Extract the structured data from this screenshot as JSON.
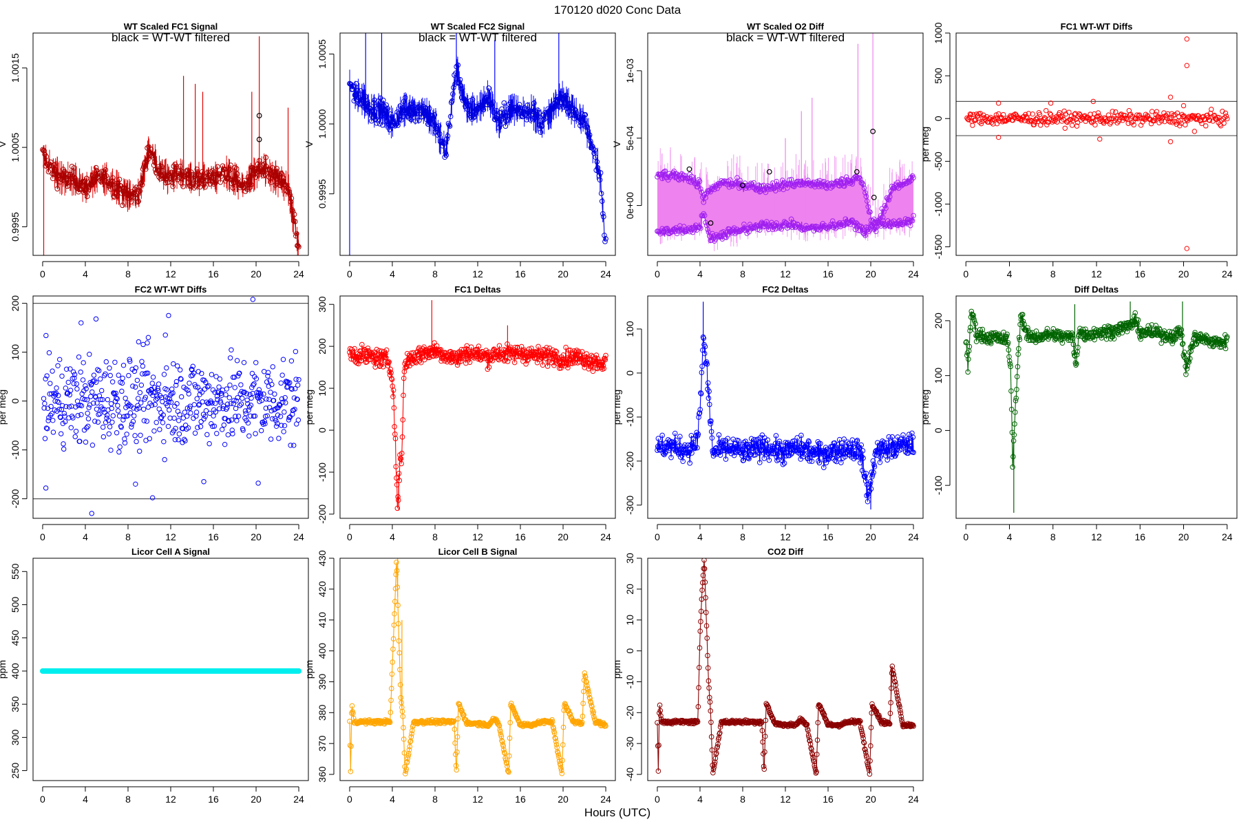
{
  "figure": {
    "title": "170120    d020    Conc Data",
    "xlabel": "Hours (UTC)",
    "xticks": [
      0,
      4,
      8,
      12,
      16,
      20,
      24
    ],
    "xlim": [
      -0.9,
      24.9
    ]
  },
  "chart_data": [
    {
      "id": "p1",
      "type": "line",
      "title": "WT Scaled FC1 Signal",
      "annotation": "black = WT-WT filtered",
      "ylabel": "V",
      "ylim": [
        0.99914,
        1.00194
      ],
      "yticks": [
        0.9995,
        1.0005,
        1.0015
      ],
      "ytick_labels": [
        "0.9995",
        "1.0005",
        "1.0015"
      ],
      "color": "#aa0000",
      "band_color": "#e00000",
      "marker_color": "#000000",
      "series": {
        "name": "FC1 signal",
        "hours": [
          0,
          1,
          2,
          3,
          4,
          5,
          6,
          7,
          8,
          9,
          10,
          11,
          12,
          13,
          14,
          15,
          16,
          17,
          18,
          19,
          20,
          21,
          22,
          23,
          23.5,
          24
        ],
        "values": [
          1.0004,
          1.0002,
          1.0001,
          1.0001,
          1.0,
          1.0001,
          1.0001,
          1.0,
          0.9999,
          0.9999,
          1.0005,
          1.0002,
          1.0001,
          1.0002,
          1.0001,
          1.0001,
          1.0001,
          1.0002,
          1.0001,
          1.0,
          1.0002,
          1.0002,
          1.0001,
          1.0,
          0.9996,
          0.9992
        ]
      },
      "spikes": [
        {
          "hour": 0.1,
          "value": 0.99914
        },
        {
          "hour": 13.2,
          "value": 1.0014
        },
        {
          "hour": 14.3,
          "value": 1.0013
        },
        {
          "hour": 15.0,
          "value": 1.0012
        },
        {
          "hour": 19.6,
          "value": 1.0012
        },
        {
          "hour": 20.3,
          "value": 1.0019
        },
        {
          "hour": 23.0,
          "value": 1.001
        }
      ],
      "markers": [
        {
          "hour": 20.3,
          "value": 1.0009
        },
        {
          "hour": 20.3,
          "value": 1.0006
        }
      ]
    },
    {
      "id": "p2",
      "type": "line",
      "title": "WT Scaled FC2 Signal",
      "annotation": "black = WT-WT filtered",
      "ylabel": "V",
      "ylim": [
        0.99906,
        1.00065
      ],
      "yticks": [
        0.9995,
        1.0,
        1.0005
      ],
      "ytick_labels": [
        "0.9995",
        "1.0000",
        "1.0005"
      ],
      "color": "#0000dd",
      "band_color": "#0000ff",
      "marker_color": "#000000",
      "series": {
        "name": "FC2 signal",
        "hours": [
          0,
          0.5,
          1,
          2,
          3,
          4,
          5,
          6,
          7,
          8,
          9,
          10,
          11,
          12,
          13,
          14,
          15,
          16,
          17,
          18,
          19,
          20,
          21,
          22,
          23,
          23.5,
          24
        ],
        "values": [
          1.0003,
          1.0002,
          1.0002,
          1.0001,
          1.0001,
          1.0,
          1.0001,
          1.0001,
          1.0001,
          1.0,
          0.9998,
          1.0004,
          1.0001,
          1.0001,
          1.0002,
          1.0,
          1.0001,
          1.0001,
          1.0001,
          1.0,
          1.0001,
          1.0002,
          1.0001,
          1.0,
          0.9998,
          0.9996,
          0.9991
        ]
      },
      "spikes": [
        {
          "hour": 0.0,
          "value": 0.99906
        },
        {
          "hour": 1.5,
          "value": 1.00065
        },
        {
          "hour": 3.0,
          "value": 1.00065
        },
        {
          "hour": 10.0,
          "value": 1.00065
        },
        {
          "hour": 13.6,
          "value": 1.0006
        },
        {
          "hour": 19.6,
          "value": 1.00065
        }
      ],
      "markers": []
    },
    {
      "id": "p3",
      "type": "line",
      "title": "WT Scaled O2 Diff",
      "annotation": "black = WT-WT filtered",
      "ylabel": "V",
      "ylim": [
        -0.00037,
        0.00128
      ],
      "yticks": [
        0.0,
        0.0005,
        0.001
      ],
      "ytick_labels": [
        "0e+00",
        "5e-04",
        "1e-03"
      ],
      "color": "#a020f0",
      "band_color": "#ee82ee",
      "marker_color": "#000000",
      "series": [
        {
          "name": "upper",
          "hours": [
            0,
            2,
            3,
            4,
            4.3,
            5,
            6,
            8,
            10,
            12,
            14,
            16,
            18,
            18.8,
            19.5,
            20.3,
            22,
            24
          ],
          "values": [
            0.00022,
            0.00022,
            0.00021,
            0.00015,
            5e-05,
            0.00012,
            0.00017,
            0.00015,
            0.00013,
            0.00016,
            0.00017,
            0.00015,
            0.00018,
            0.00022,
            0.0001,
            -0.0002,
            0.00012,
            0.00021
          ]
        },
        {
          "name": "lower",
          "hours": [
            0,
            2,
            3,
            4,
            4.3,
            5,
            6,
            8,
            10,
            12,
            14,
            16,
            18,
            18.8,
            19.5,
            20.3,
            22,
            24
          ],
          "values": [
            -0.0002,
            -0.00018,
            -0.00018,
            -0.00015,
            -5e-05,
            -0.00025,
            -0.00022,
            -0.00018,
            -0.00015,
            -0.00014,
            -0.00017,
            -0.00016,
            -0.00012,
            -0.00015,
            -0.0002,
            -0.00012,
            -0.00015,
            -0.00011
          ]
        }
      ],
      "spikes": [
        {
          "hour": 13.5,
          "value": 0.0007
        },
        {
          "hour": 14.5,
          "value": 0.0008
        },
        {
          "hour": 18.8,
          "value": 0.0012
        },
        {
          "hour": 20.2,
          "value": 0.00128
        },
        {
          "hour": 12.0,
          "value": 0.0005
        }
      ],
      "markers": [
        {
          "hour": 3.0,
          "value": 0.00027
        },
        {
          "hour": 5.0,
          "value": -0.00013
        },
        {
          "hour": 8.0,
          "value": 0.00015
        },
        {
          "hour": 10.5,
          "value": 0.00025
        },
        {
          "hour": 18.7,
          "value": 0.00025
        },
        {
          "hour": 20.2,
          "value": 0.00055
        },
        {
          "hour": 20.3,
          "value": 6e-05
        }
      ]
    },
    {
      "id": "p4",
      "type": "scatter",
      "title": "FC1 WT-WT Diffs",
      "ylabel": "per meg",
      "ylim": [
        -1600,
        1000
      ],
      "yticks": [
        -1500,
        -1000,
        -500,
        0,
        500,
        1000
      ],
      "ytick_labels": [
        "-1500",
        "-1000",
        "-500",
        "0",
        "500",
        "1000"
      ],
      "hlines": [
        200,
        -200
      ],
      "color": "#ff0000",
      "spread": 50,
      "n": 330,
      "outliers": [
        {
          "hour": 20.3,
          "value": 930
        },
        {
          "hour": 20.3,
          "value": 620
        },
        {
          "hour": 20.3,
          "value": -1520
        },
        {
          "hour": 18.8,
          "value": 250
        },
        {
          "hour": 18.8,
          "value": -270
        },
        {
          "hour": 3.0,
          "value": 180
        },
        {
          "hour": 3.0,
          "value": -220
        },
        {
          "hour": 7.8,
          "value": 180
        },
        {
          "hour": 11.7,
          "value": 200
        },
        {
          "hour": 12.3,
          "value": -240
        },
        {
          "hour": 20.0,
          "value": 150
        },
        {
          "hour": 21.0,
          "value": -150
        }
      ]
    },
    {
      "id": "p5",
      "type": "scatter",
      "title": "FC2 WT-WT Diffs",
      "ylabel": "per meg",
      "ylim": [
        -240,
        215
      ],
      "yticks": [
        -200,
        -100,
        0,
        100,
        200
      ],
      "ytick_labels": [
        "-200",
        "-100",
        "0",
        "100",
        "200"
      ],
      "hlines": [
        200,
        -200
      ],
      "color": "#0000ff",
      "spread": 60,
      "n": 560,
      "outliers": [
        {
          "hour": 19.7,
          "value": 208
        },
        {
          "hour": 4.6,
          "value": -230
        },
        {
          "hour": 0.3,
          "value": -178
        },
        {
          "hour": 10.3,
          "value": -198
        },
        {
          "hour": 11.8,
          "value": 175
        },
        {
          "hour": 3.6,
          "value": 160
        },
        {
          "hour": 5.0,
          "value": 168
        },
        {
          "hour": 15.1,
          "value": -165
        },
        {
          "hour": 20.2,
          "value": -168
        },
        {
          "hour": 8.7,
          "value": -170
        },
        {
          "hour": 11.5,
          "value": 135
        },
        {
          "hour": 9.9,
          "value": 130
        }
      ]
    },
    {
      "id": "p6",
      "type": "line",
      "title": "FC1 Deltas",
      "ylabel": "per meg",
      "ylim": [
        -210,
        320
      ],
      "yticks": [
        -200,
        -100,
        0,
        100,
        200,
        300
      ],
      "ytick_labels": [
        "-200",
        "-100",
        "0",
        "100",
        "200",
        "300"
      ],
      "color": "#ff0000",
      "spread": 18,
      "series": {
        "hours": [
          0,
          1,
          2,
          3,
          3.6,
          3.9,
          4.1,
          4.3,
          4.5,
          4.7,
          4.9,
          5.1,
          5.5,
          6,
          7,
          8,
          9,
          10,
          11,
          12,
          13,
          14,
          15,
          16,
          17,
          18,
          19,
          20,
          21,
          22,
          23,
          24
        ],
        "values": [
          185,
          178,
          175,
          170,
          165,
          140,
          100,
          -50,
          -185,
          -80,
          -60,
          150,
          170,
          175,
          185,
          190,
          180,
          170,
          185,
          180,
          175,
          185,
          180,
          185,
          180,
          175,
          180,
          170,
          175,
          170,
          165,
          160
        ]
      },
      "spikes": [
        {
          "hour": 7.7,
          "value": 310
        },
        {
          "hour": 14.8,
          "value": 250
        },
        {
          "hour": 4.6,
          "value": -190
        }
      ]
    },
    {
      "id": "p7",
      "type": "line",
      "title": "FC2 Deltas",
      "ylabel": "per meg",
      "ylim": [
        -330,
        175
      ],
      "yticks": [
        -300,
        -200,
        -100,
        0,
        100
      ],
      "ytick_labels": [
        "-300",
        "-200",
        "-100",
        "0",
        "100"
      ],
      "color": "#0000ff",
      "spread": 22,
      "series": {
        "hours": [
          0,
          1,
          2,
          3,
          3.8,
          4.1,
          4.3,
          4.6,
          4.9,
          5.2,
          6,
          7,
          8,
          9,
          10,
          11,
          12,
          13,
          14,
          15,
          16,
          17,
          18,
          19,
          19.8,
          20.1,
          20.4,
          21,
          22,
          23,
          24
        ],
        "values": [
          -170,
          -165,
          -170,
          -175,
          -150,
          -40,
          80,
          20,
          -80,
          -180,
          -175,
          -170,
          -180,
          -175,
          -165,
          -175,
          -180,
          -170,
          -175,
          -185,
          -180,
          -175,
          -170,
          -175,
          -280,
          -240,
          -180,
          -175,
          -170,
          -165,
          -160
        ]
      },
      "spikes": [
        {
          "hour": 4.3,
          "value": 162
        },
        {
          "hour": 20.0,
          "value": -310
        }
      ]
    },
    {
      "id": "p8",
      "type": "line",
      "title": "Diff Deltas",
      "ylabel": "per meg",
      "ylim": [
        -160,
        245
      ],
      "yticks": [
        -100,
        0,
        100,
        200
      ],
      "ytick_labels": [
        "-100",
        "0",
        "100",
        "200"
      ],
      "color": "#006400",
      "spread": 10,
      "series": {
        "hours": [
          0,
          0.2,
          0.5,
          1,
          2,
          3,
          3.8,
          4.1,
          4.3,
          4.5,
          4.7,
          4.9,
          5.1,
          5.5,
          6,
          7,
          8,
          9,
          9.8,
          10.1,
          10.4,
          11,
          12,
          13,
          14,
          15,
          15.5,
          16,
          17,
          18,
          19,
          19.8,
          20.2,
          21,
          22,
          23,
          24
        ],
        "values": [
          170,
          110,
          220,
          175,
          170,
          168,
          165,
          120,
          -60,
          20,
          100,
          170,
          215,
          175,
          170,
          172,
          175,
          170,
          170,
          120,
          180,
          175,
          178,
          180,
          185,
          190,
          200,
          180,
          178,
          175,
          172,
          180,
          110,
          170,
          165,
          160,
          162
        ]
      },
      "spikes": [
        {
          "hour": 4.4,
          "value": -150
        },
        {
          "hour": 10.0,
          "value": 230
        },
        {
          "hour": 15.1,
          "value": 235
        },
        {
          "hour": 19.9,
          "value": 235
        }
      ]
    },
    {
      "id": "p9",
      "type": "line",
      "title": "Licor Cell A Signal",
      "ylabel": "ppm",
      "ylim": [
        235,
        570
      ],
      "yticks": [
        250,
        300,
        350,
        400,
        450,
        500,
        550
      ],
      "ytick_labels": [
        "250",
        "300",
        "350",
        "400",
        "450",
        "500",
        "550"
      ],
      "color": "#00eeee",
      "spread": 0,
      "series": {
        "hours": [
          0,
          24
        ],
        "values": [
          400,
          400
        ]
      },
      "spikes": []
    },
    {
      "id": "p10",
      "type": "line",
      "title": "Licor Cell B Signal",
      "ylabel": "ppm",
      "ylim": [
        358,
        430
      ],
      "yticks": [
        360,
        370,
        380,
        390,
        400,
        410,
        420,
        430
      ],
      "ytick_labels": [
        "360",
        "370",
        "380",
        "390",
        "400",
        "410",
        "420",
        "430"
      ],
      "color": "#ffa500",
      "spread": 0.5,
      "series": {
        "hours": [
          0,
          0.1,
          0.2,
          0.4,
          1,
          2,
          3,
          3.8,
          4.0,
          4.2,
          4.4,
          4.6,
          4.8,
          5.0,
          5.2,
          6,
          8,
          9.8,
          10.0,
          10.2,
          11,
          12,
          13,
          13.5,
          14,
          14.9,
          15.1,
          16,
          17,
          18,
          19,
          19.9,
          20.1,
          21,
          21.8,
          22,
          23,
          24
        ],
        "values": [
          377,
          360,
          383,
          377,
          377,
          377,
          377,
          377,
          395,
          412,
          430,
          405,
          385,
          378,
          360,
          377,
          377,
          377,
          360,
          383,
          376.5,
          376.5,
          376,
          378,
          376,
          360,
          383,
          376,
          376,
          377,
          377,
          360,
          383,
          377,
          376.5,
          393,
          377,
          376
        ]
      },
      "spikes": [
        {
          "hour": 4.5,
          "value": 430
        },
        {
          "hour": 4.9,
          "value": 410
        }
      ]
    },
    {
      "id": "p11",
      "type": "line",
      "title": "CO2 Diff",
      "ylabel": "ppm",
      "ylim": [
        -42,
        30
      ],
      "yticks": [
        -40,
        -30,
        -20,
        -10,
        0,
        10,
        20,
        30
      ],
      "ytick_labels": [
        "-40",
        "-30",
        "-20",
        "-10",
        "0",
        "10",
        "20",
        "30"
      ],
      "color": "#8b0000",
      "spread": 0.5,
      "series": {
        "hours": [
          0,
          0.1,
          0.2,
          0.4,
          1,
          2,
          3,
          3.8,
          4.0,
          4.2,
          4.4,
          4.6,
          4.8,
          5.0,
          5.2,
          6,
          8,
          9.8,
          10.0,
          10.2,
          11,
          12,
          13,
          13.5,
          14,
          14.9,
          15.1,
          16,
          17,
          18,
          19,
          19.9,
          20.1,
          21,
          21.8,
          22,
          23,
          24
        ],
        "values": [
          -23,
          -40,
          -17,
          -23,
          -23,
          -23,
          -23,
          -23,
          5,
          20,
          30,
          10,
          -10,
          -20,
          -40,
          -23,
          -23,
          -23,
          -40,
          -17,
          -23.5,
          -24,
          -24,
          -22,
          -24,
          -40,
          -17,
          -24,
          -24,
          -23,
          -23,
          -40,
          -17,
          -23,
          -23.5,
          -5,
          -24,
          -24
        ]
      },
      "spikes": [
        {
          "hour": 4.4,
          "value": 30
        },
        {
          "hour": 21.9,
          "value": -5
        }
      ]
    }
  ]
}
